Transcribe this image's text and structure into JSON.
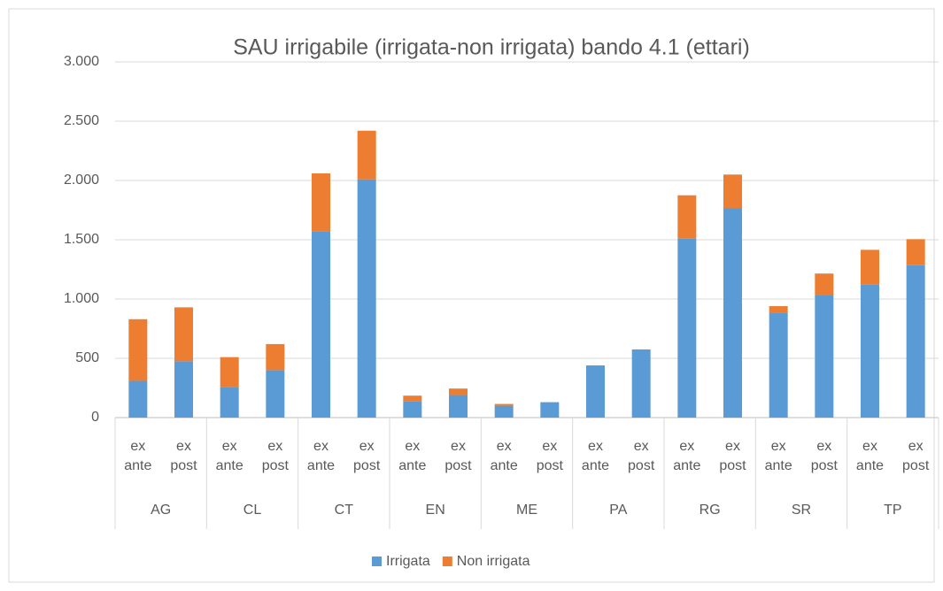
{
  "chart_data": {
    "type": "stacked_bar",
    "title": "SAU irrigabile (irrigata-non irrigata) bando 4.1 (ettari)",
    "groups": [
      "AG",
      "CL",
      "CT",
      "EN",
      "ME",
      "PA",
      "RG",
      "SR",
      "TP"
    ],
    "categories": [
      "ex ante",
      "ex post",
      "ex ante",
      "ex post",
      "ex ante",
      "ex post",
      "ex ante",
      "ex post",
      "ex ante",
      "ex post",
      "ex ante",
      "ex post",
      "ex ante",
      "ex post",
      "ex ante",
      "ex post",
      "ex ante",
      "ex post"
    ],
    "series": [
      {
        "name": "Irrigata",
        "color": "#5b9bd5",
        "values": [
          310,
          475,
          260,
          400,
          1570,
          2010,
          140,
          190,
          100,
          130,
          440,
          575,
          1510,
          1765,
          885,
          1030,
          1120,
          1285
        ]
      },
      {
        "name": "Non irrigata",
        "color": "#ed7d31",
        "values": [
          520,
          455,
          250,
          220,
          490,
          410,
          45,
          55,
          15,
          0,
          0,
          0,
          365,
          285,
          55,
          185,
          295,
          220
        ]
      }
    ],
    "ylim": [
      0,
      3000
    ],
    "yticks": [
      0,
      500,
      {
        "value": 1000,
        "label": "1.000"
      },
      {
        "value": 1500,
        "label": "1.500"
      },
      {
        "value": 2000,
        "label": "2.000"
      },
      {
        "value": 2500,
        "label": "2.500"
      },
      {
        "value": 3000,
        "label": "3.000"
      }
    ],
    "grid": true,
    "legend": "bottom"
  }
}
